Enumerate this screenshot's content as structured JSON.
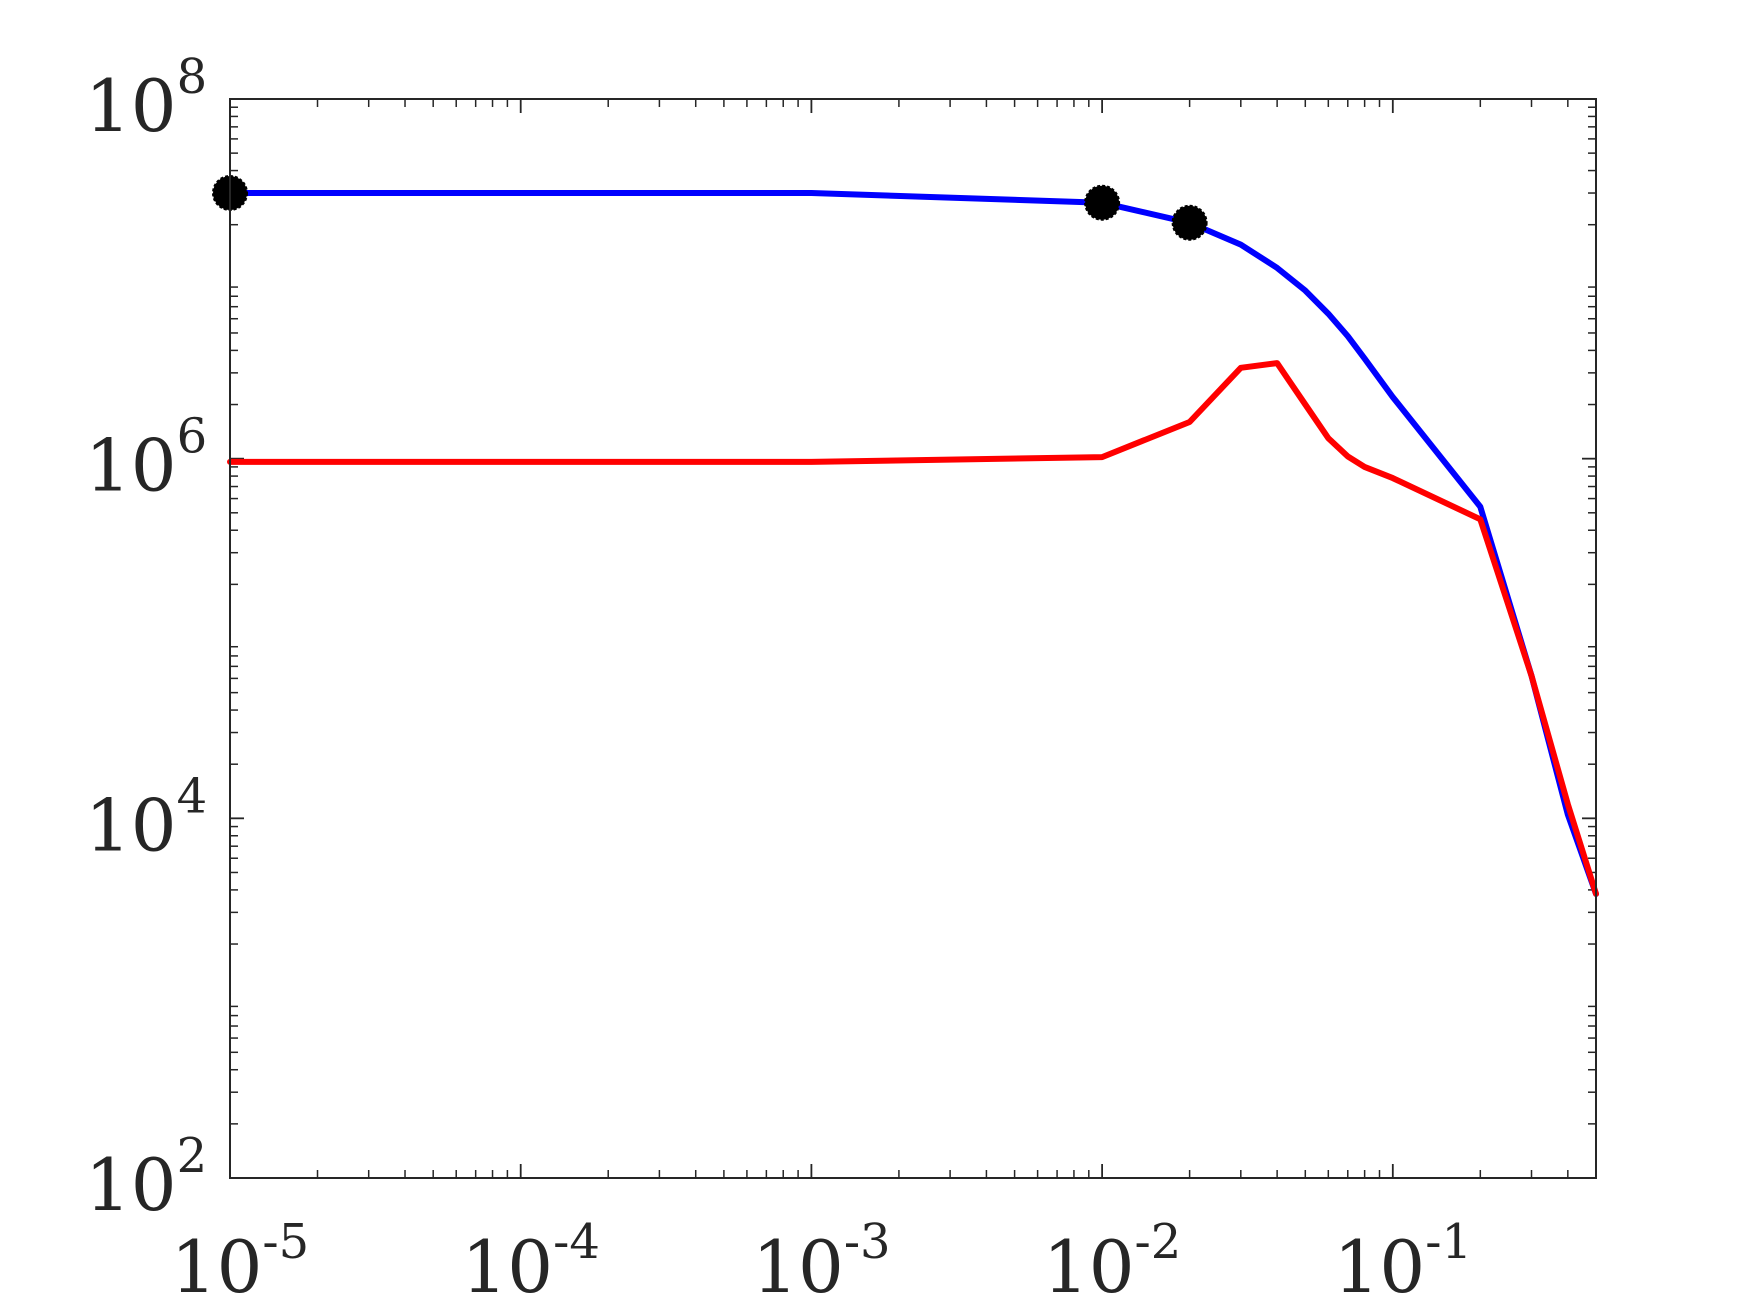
{
  "chart_data": {
    "type": "line",
    "title": "",
    "xlabel": "",
    "ylabel": "",
    "x_scale": "log",
    "y_scale": "log",
    "xlim": [
      1e-05,
      0.5
    ],
    "ylim": [
      100,
      100000000
    ],
    "grid": false,
    "legend": "none",
    "x_ticks": [
      {
        "value": 1e-05,
        "base": "10",
        "exp": "-5"
      },
      {
        "value": 0.0001,
        "base": "10",
        "exp": "-4"
      },
      {
        "value": 0.001,
        "base": "10",
        "exp": "-3"
      },
      {
        "value": 0.01,
        "base": "10",
        "exp": "-2"
      },
      {
        "value": 0.1,
        "base": "10",
        "exp": "-1"
      }
    ],
    "y_ticks": [
      {
        "value": 100,
        "base": "10",
        "exp": "2"
      },
      {
        "value": 10000,
        "base": "10",
        "exp": "4"
      },
      {
        "value": 1000000,
        "base": "10",
        "exp": "6"
      },
      {
        "value": 100000000,
        "base": "10",
        "exp": "8"
      }
    ],
    "series": [
      {
        "color": "#0000ff",
        "x": [
          1e-05,
          0.0001,
          0.001,
          0.01,
          0.02,
          0.03,
          0.04,
          0.05,
          0.06,
          0.07,
          0.08,
          0.1,
          0.2,
          0.3,
          0.4,
          0.5
        ],
        "y": [
          30000000,
          30000000,
          30000000,
          26500000,
          20500000,
          15500000,
          11500000,
          8600000,
          6400000,
          4800000,
          3600000,
          2200000,
          540000,
          62000,
          10500,
          3800
        ]
      },
      {
        "color": "#ff0000",
        "x": [
          1e-05,
          0.0001,
          0.001,
          0.01,
          0.02,
          0.03,
          0.04,
          0.05,
          0.06,
          0.07,
          0.08,
          0.1,
          0.2,
          0.3,
          0.4,
          0.5
        ],
        "y": [
          960000,
          960000,
          960000,
          1020000,
          1600000,
          3200000,
          3400000,
          2000000,
          1300000,
          1030000,
          900000,
          780000,
          460000,
          62000,
          12000,
          3800
        ]
      }
    ],
    "markers": {
      "color": "#000000",
      "points": [
        {
          "x": 1e-05,
          "y": 30000000
        },
        {
          "x": 0.01,
          "y": 26500000
        },
        {
          "x": 0.02,
          "y": 20500000
        }
      ]
    }
  }
}
